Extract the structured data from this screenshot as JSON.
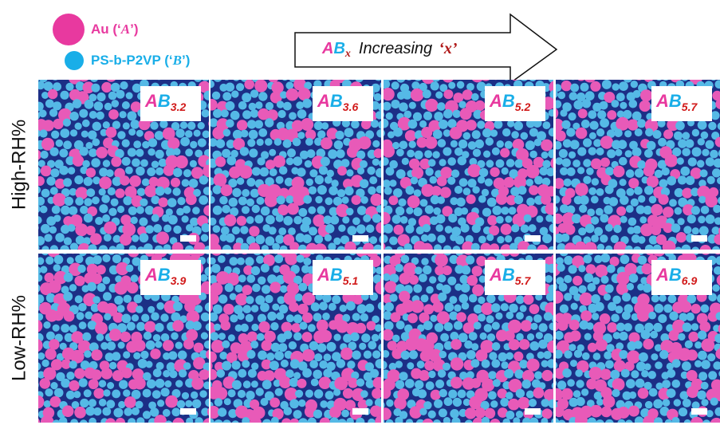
{
  "legend": {
    "items": [
      {
        "parts": [
          "Au (‘",
          "A",
          "’)"
        ]
      },
      {
        "parts": [
          "PS-b-P2VP (‘",
          "B",
          "’)"
        ]
      }
    ]
  },
  "arrow": {
    "a": "A",
    "b": "B",
    "sub": "x",
    "text": "Increasing",
    "var": "‘x’"
  },
  "rows": [
    {
      "label": "High-RH%",
      "panels": [
        {
          "a": "A",
          "b": "B",
          "sub": "3.2"
        },
        {
          "a": "A",
          "b": "B",
          "sub": "3.6"
        },
        {
          "a": "A",
          "b": "B",
          "sub": "5.2"
        },
        {
          "a": "A",
          "b": "B",
          "sub": "5.7"
        }
      ]
    },
    {
      "label": "Low-RH%",
      "panels": [
        {
          "a": "A",
          "b": "B",
          "sub": "3.9"
        },
        {
          "a": "A",
          "b": "B",
          "sub": "5.1"
        },
        {
          "a": "A",
          "b": "B",
          "sub": "5.7"
        },
        {
          "a": "A",
          "b": "B",
          "sub": "6.9"
        }
      ]
    }
  ]
}
